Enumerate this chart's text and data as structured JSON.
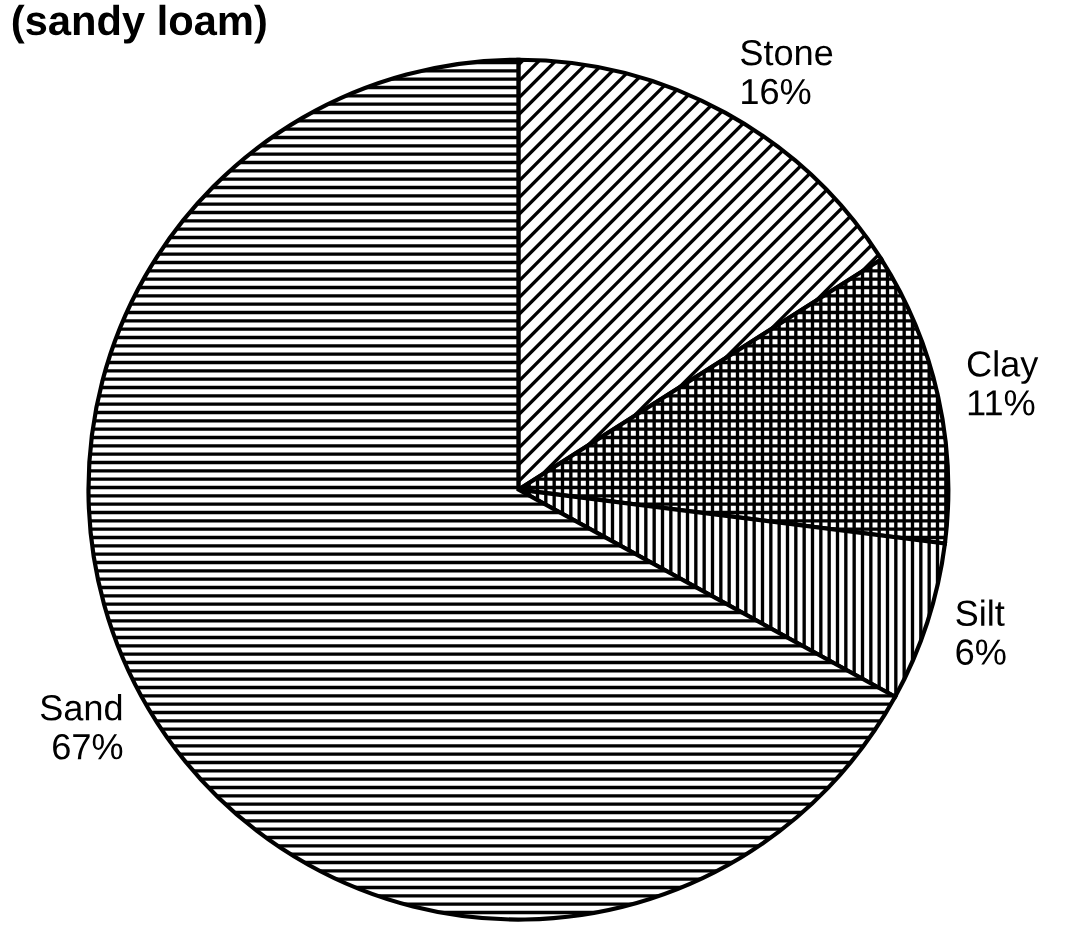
{
  "chart_data": {
    "type": "pie",
    "title": "(sandy loam)",
    "categories": [
      "Stone",
      "Clay",
      "Silt",
      "Sand"
    ],
    "values": [
      16,
      11,
      6,
      67
    ],
    "colors": [
      "#000000",
      "#000000",
      "#000000",
      "#000000"
    ],
    "value_labels": [
      "16%",
      "11%",
      "6%",
      "67%"
    ],
    "legend": false
  }
}
